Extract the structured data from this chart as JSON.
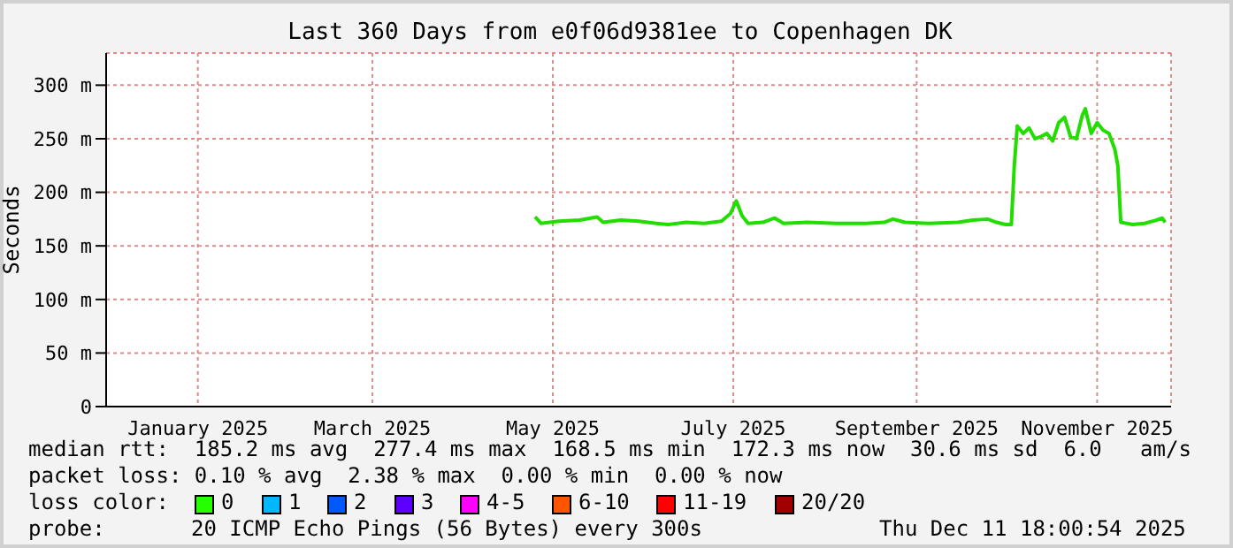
{
  "chart_data": {
    "type": "line",
    "title": "Last 360 Days from e0f06d9381ee to Copenhagen DK",
    "ylabel": "Seconds",
    "x": [
      "2025-05-10",
      "2025-05-12",
      "2025-05-18",
      "2025-05-25",
      "2025-05-31",
      "2025-06-02",
      "2025-06-08",
      "2025-06-14",
      "2025-06-20",
      "2025-06-24",
      "2025-06-30",
      "2025-07-06",
      "2025-07-12",
      "2025-07-15",
      "2025-07-17",
      "2025-07-19",
      "2025-07-21",
      "2025-07-26",
      "2025-07-30",
      "2025-08-02",
      "2025-08-10",
      "2025-08-20",
      "2025-08-30",
      "2025-09-05",
      "2025-09-08",
      "2025-09-12",
      "2025-09-20",
      "2025-09-30",
      "2025-10-05",
      "2025-10-10",
      "2025-10-13",
      "2025-10-16",
      "2025-10-18",
      "2025-10-19",
      "2025-10-20",
      "2025-10-22",
      "2025-10-24",
      "2025-10-26",
      "2025-10-28",
      "2025-10-30",
      "2025-11-01",
      "2025-11-03",
      "2025-11-05",
      "2025-11-07",
      "2025-11-09",
      "2025-11-11",
      "2025-11-12",
      "2025-11-14",
      "2025-11-16",
      "2025-11-18",
      "2025-11-20",
      "2025-11-22",
      "2025-11-23",
      "2025-11-24",
      "2025-11-28",
      "2025-12-02",
      "2025-12-06",
      "2025-12-08",
      "2025-12-09"
    ],
    "series": [
      {
        "color": "#22dd00",
        "values": [
          177,
          171,
          173,
          174,
          177,
          172,
          174,
          173,
          171,
          170,
          172,
          171,
          173,
          180,
          192,
          178,
          171,
          172,
          176,
          171,
          172,
          171,
          171,
          172,
          175,
          172,
          171,
          172,
          174,
          175,
          172,
          170,
          170,
          225,
          262,
          255,
          260,
          250,
          252,
          255,
          248,
          265,
          270,
          252,
          250,
          272,
          278,
          255,
          265,
          258,
          255,
          240,
          225,
          172,
          170,
          171,
          174,
          176,
          172
        ]
      }
    ],
    "xlim": [
      "2024-12-16",
      "2025-12-11"
    ],
    "xticks": [
      {
        "value": "2025-01-16",
        "label": "January 2025"
      },
      {
        "value": "2025-03-16",
        "label": "March 2025"
      },
      {
        "value": "2025-05-16",
        "label": "May 2025"
      },
      {
        "value": "2025-07-16",
        "label": "July 2025"
      },
      {
        "value": "2025-09-16",
        "label": "September 2025"
      },
      {
        "value": "2025-11-16",
        "label": "November 2025"
      }
    ],
    "ylim": [
      0,
      330
    ],
    "yticks": [
      0,
      {
        "value": 50,
        "label": "50 m"
      },
      {
        "value": 100,
        "label": "100 m"
      },
      {
        "value": 150,
        "label": "150 m"
      },
      {
        "value": 200,
        "label": "200 m"
      },
      {
        "value": 250,
        "label": "250 m"
      },
      {
        "value": 300,
        "label": "300 m"
      }
    ],
    "grid": true,
    "legend": false,
    "marker": "none",
    "line_style": "solid",
    "annotations": [
      "median rtt:  185.2 ms avg  277.4 ms max  168.5 ms min  172.3 ms now  30.6 ms sd  6.0   am/s",
      "packet loss: 0.10 % avg  2.38 % max  0.00 % min  0.00 % now",
      "loss color:",
      "0",
      "1",
      "2",
      "3",
      "4-5",
      "6-10",
      "11-19",
      "20/20",
      "probe:",
      "20 ICMP Echo Pings (56 Bytes) every 300s",
      "Thu Dec 11 18:00:54 2025"
    ]
  }
}
